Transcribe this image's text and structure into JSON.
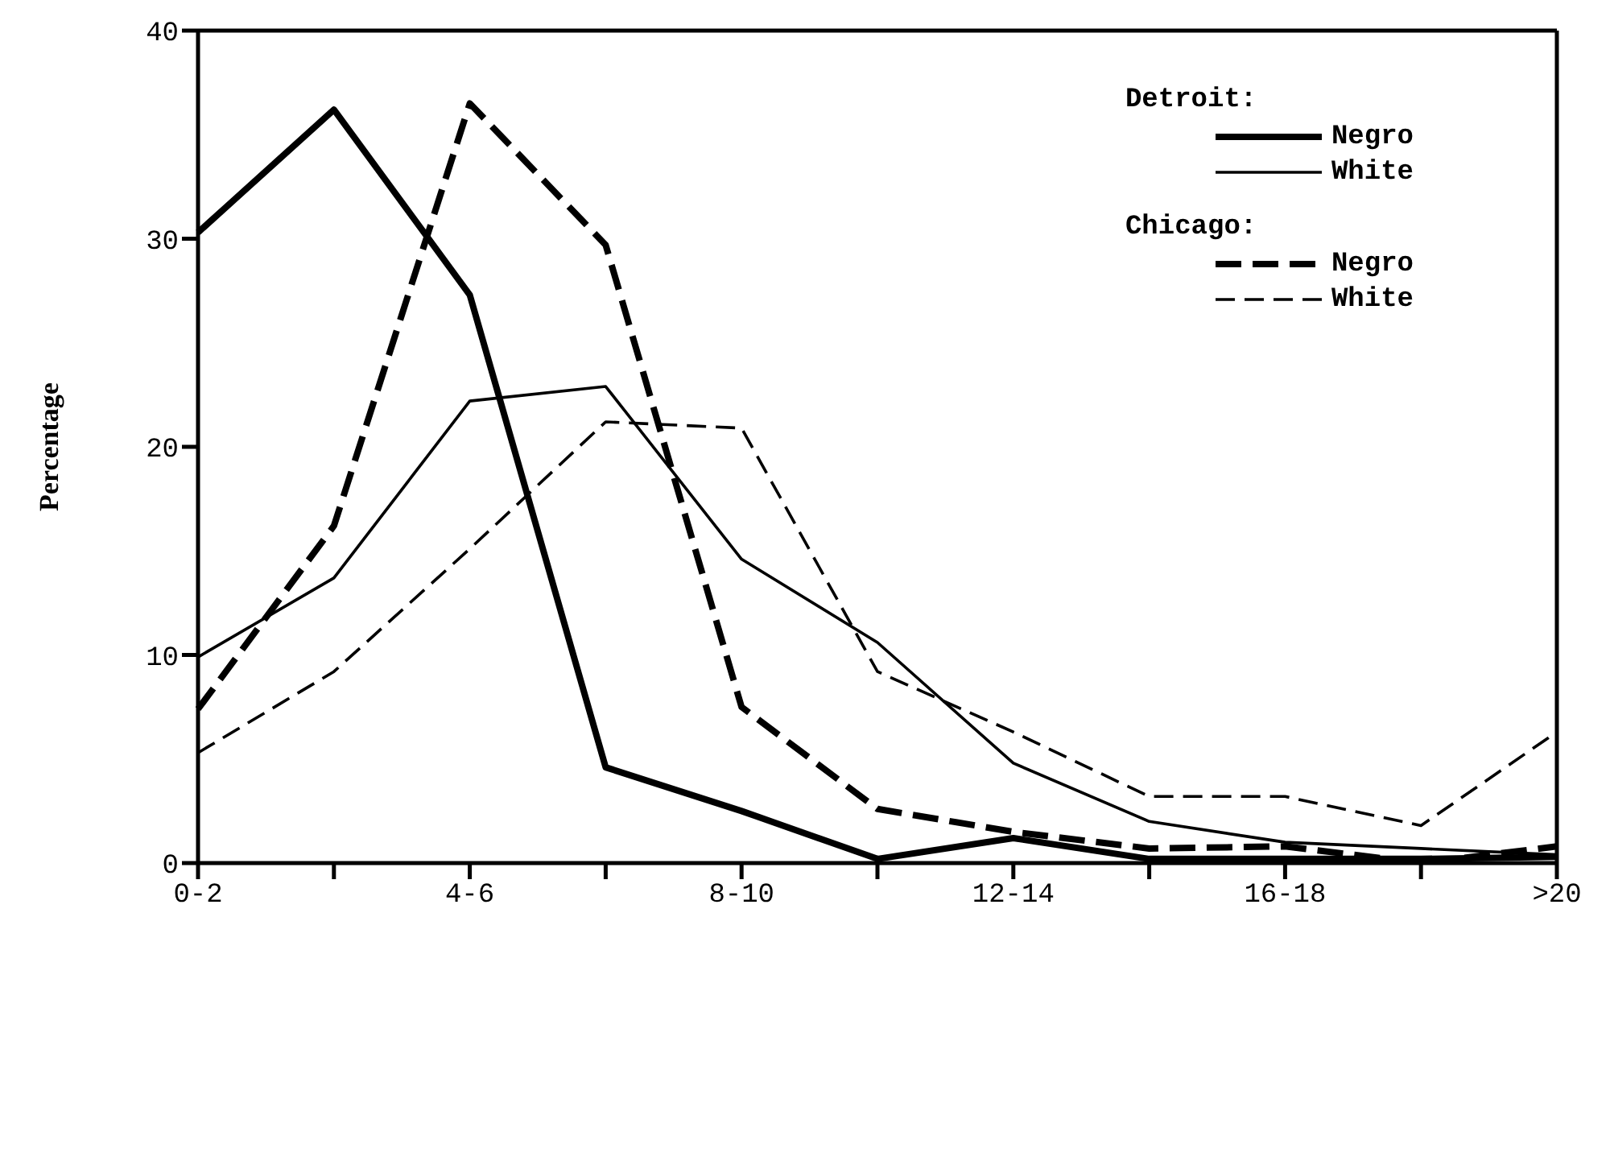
{
  "chart_data": {
    "type": "line",
    "ylabel": "Percentage",
    "categories": [
      "0-2",
      null,
      "4-6",
      null,
      "8-10",
      null,
      "12-14",
      null,
      "16-18",
      null,
      ">20"
    ],
    "series": [
      {
        "name": "Negro",
        "color": "#000000",
        "line_style": "solid",
        "values": [
          30.3,
          36.2,
          27.3,
          4.6,
          2.5,
          0.2,
          1.2,
          0.2,
          0.2,
          0.2,
          0.3
        ]
      },
      {
        "name": "White",
        "color": "#000000",
        "line_style": "solid",
        "values": [
          9.9,
          13.7,
          22.2,
          22.9,
          14.6,
          10.6,
          4.8,
          2.0,
          1.0,
          0.7,
          0.4
        ]
      },
      {
        "name": "Negro",
        "color": "#000000",
        "line_style": "dashed",
        "values": [
          7.4,
          16.2,
          36.5,
          29.7,
          7.5,
          2.6,
          1.5,
          0.7,
          0.8,
          0,
          0.8
        ]
      },
      {
        "name": "White",
        "color": "#000000",
        "line_style": "dashed",
        "values": [
          5.3,
          9.2,
          15.1,
          21.2,
          20.9,
          9.2,
          6.3,
          3.2,
          3.2,
          1.8,
          6.3
        ]
      }
    ],
    "ylim": [
      0,
      40
    ],
    "yticks": [
      0,
      10,
      20,
      30,
      40
    ],
    "grid": false,
    "legend": "top right",
    "marker": "none",
    "annotations": [
      "Detroit:",
      "Chicago:"
    ]
  }
}
